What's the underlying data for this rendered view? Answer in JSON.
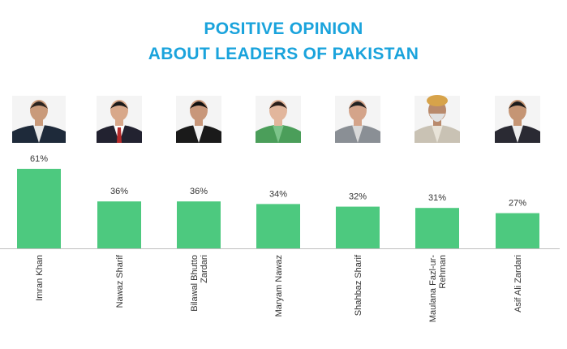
{
  "title": {
    "line1": "POSITIVE OPINION",
    "line2": "ABOUT LEADERS OF PAKISTAN"
  },
  "colors": {
    "title": "#1aa3dc",
    "bar": "#4dc97f",
    "axis": "#bfbfbf"
  },
  "chart_data": {
    "type": "bar",
    "categories": [
      [
        "Imran Khan"
      ],
      [
        "Nawaz Sharif"
      ],
      [
        "Bilawal Bhutto",
        "Zardari"
      ],
      [
        "Maryam Nawaz"
      ],
      [
        "Shahbaz Sharif"
      ],
      [
        "Maulana Fazl-ur-",
        "Rehman"
      ],
      [
        "Asif Ali Zardari"
      ]
    ],
    "values": [
      61,
      36,
      36,
      34,
      32,
      31,
      27
    ],
    "value_labels": [
      "61%",
      "36%",
      "36%",
      "34%",
      "32%",
      "31%",
      "27%"
    ],
    "ylim": [
      0,
      61
    ],
    "grid": false,
    "legend": "none"
  },
  "portraits": [
    {
      "icon": "portrait-icon",
      "suit": "#1e2a3a",
      "shirt": "#e8e8e8",
      "hair": "#2a2420",
      "skin": "#c99a7a"
    },
    {
      "icon": "portrait-icon",
      "suit": "#222230",
      "shirt": "#ffffff",
      "hair": "#1a1a1a",
      "skin": "#d8a88a",
      "tie": "#b52a2a"
    },
    {
      "icon": "portrait-icon",
      "suit": "#1a1a1a",
      "shirt": "#f2f2f2",
      "hair": "#111111",
      "skin": "#c8977a"
    },
    {
      "icon": "portrait-icon",
      "suit": "#4b9e5a",
      "shirt": "#7cc48a",
      "hair": "#2a1f1a",
      "skin": "#e2b69c"
    },
    {
      "icon": "portrait-icon",
      "suit": "#8a8f95",
      "shirt": "#d9d9d9",
      "hair": "#222222",
      "skin": "#d4a48a"
    },
    {
      "icon": "portrait-icon",
      "suit": "#c9c2b4",
      "shirt": "#e8e3d8",
      "hair": "#e0e0e0",
      "skin": "#b98a6c",
      "turban": "#d7a34a"
    },
    {
      "icon": "portrait-icon",
      "suit": "#2a2a33",
      "shirt": "#ececec",
      "hair": "#1c1c1c",
      "skin": "#c59574"
    }
  ]
}
